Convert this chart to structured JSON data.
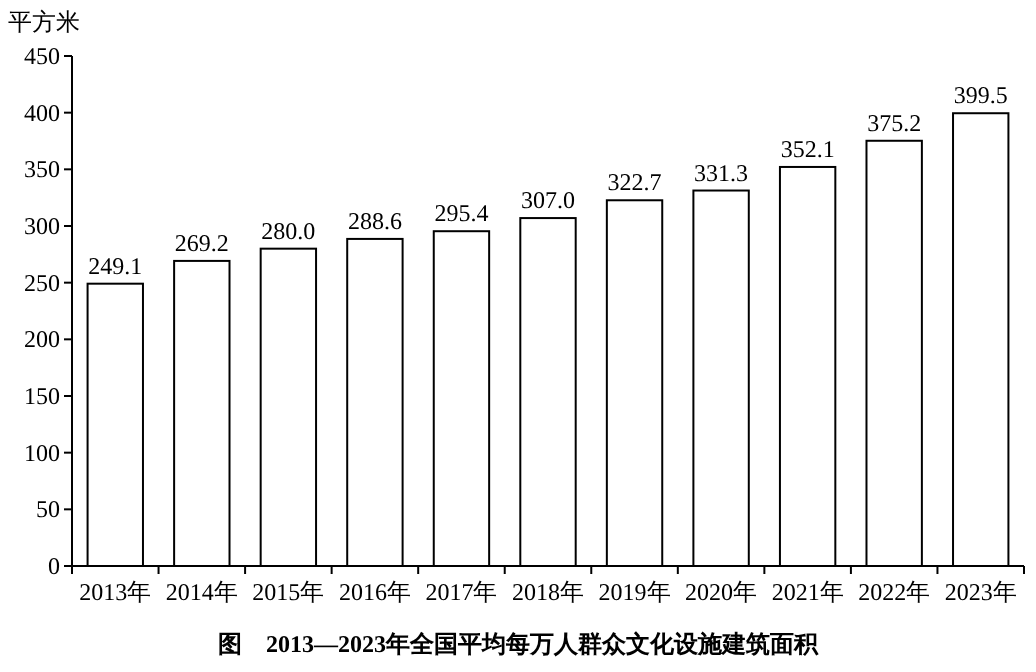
{
  "chart_data": {
    "type": "bar",
    "title": "图　2013—2023年全国平均每万人群众文化设施建筑面积",
    "ylabel": "平方米",
    "categories": [
      "2013年",
      "2014年",
      "2015年",
      "2016年",
      "2017年",
      "2018年",
      "2019年",
      "2020年",
      "2021年",
      "2022年",
      "2023年"
    ],
    "values": [
      249.1,
      269.2,
      280.0,
      288.6,
      295.4,
      307.0,
      322.7,
      331.3,
      352.1,
      375.2,
      399.5
    ],
    "value_labels": [
      "249.1",
      "269.2",
      "280.0",
      "288.6",
      "295.4",
      "307.0",
      "322.7",
      "331.3",
      "352.1",
      "375.2",
      "399.5"
    ],
    "color": "#ffffff",
    "ylim": [
      0,
      450
    ],
    "yticks": [
      0,
      50,
      100,
      150,
      200,
      250,
      300,
      350,
      400,
      450
    ],
    "grid": false
  }
}
